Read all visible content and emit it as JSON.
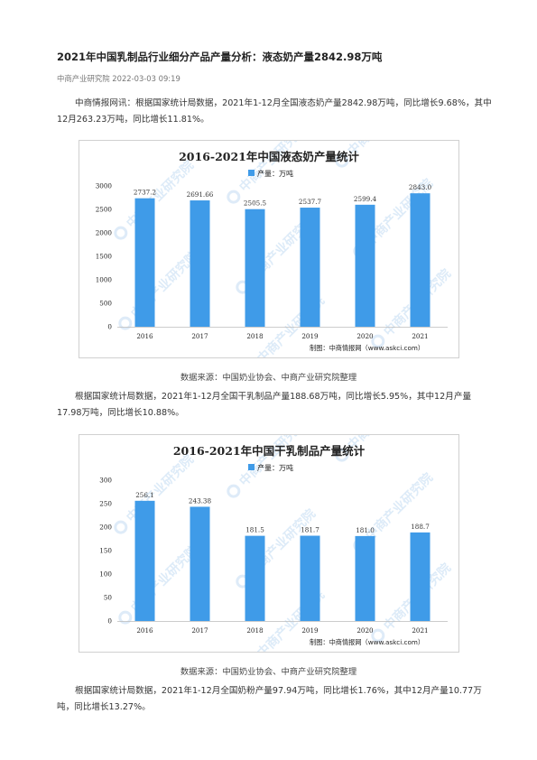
{
  "article": {
    "title": "2021年中国乳制品行业细分产品产量分析：液态奶产量2842.98万吨",
    "source_name": "中商产业研究院",
    "date": "2022-03-03 09:19",
    "p1": "中商情报网讯：根据国家统计局数据，2021年1-12月全国液态奶产量2842.98万吨，同比增长9.68%，其中12月263.23万吨，同比增长11.81%。",
    "caption1": "数据来源：中国奶业协会、中商产业研究院整理",
    "p2": "根据国家统计局数据，2021年1-12月全国干乳制品产量188.68万吨，同比增长5.95%，其中12月产量17.98万吨，同比增长10.88%。",
    "caption2": "数据来源：中国奶业协会、中商产业研究院整理",
    "p3": "根据国家统计局数据，2021年1-12月全国奶粉产量97.94万吨，同比增长1.76%，其中12月产量10.77万吨，同比增长13.27%。"
  },
  "chart_data": [
    {
      "type": "bar",
      "title": "2016-2021年中国液态奶产量统计",
      "categories": [
        "2016",
        "2017",
        "2018",
        "2019",
        "2020",
        "2021"
      ],
      "series": [
        {
          "name": "产量：万吨",
          "values": [
            2737.2,
            2691.66,
            2505.5,
            2537.7,
            2599.4,
            2843.0
          ]
        }
      ],
      "value_labels": [
        "2737.2",
        "2691.66",
        "2505.5",
        "2537.7",
        "2599.4",
        "2843.0"
      ],
      "yticks": [
        "0",
        "500",
        "1000",
        "1500",
        "2000",
        "2500",
        "3000"
      ],
      "ylim": [
        0,
        3000
      ],
      "legend": "top-center",
      "grid": false,
      "credit": "制图：中商情报网（www.askci.com）",
      "bar_color": "#3f9be8"
    },
    {
      "type": "bar",
      "title": "2016-2021年中国干乳制品产量统计",
      "categories": [
        "2016",
        "2017",
        "2018",
        "2019",
        "2020",
        "2021"
      ],
      "series": [
        {
          "name": "产量：万吨",
          "values": [
            256.1,
            243.38,
            181.5,
            181.7,
            181.0,
            188.7
          ]
        }
      ],
      "value_labels": [
        "256.1",
        "243.38",
        "181.5",
        "181.7",
        "181.0",
        "188.7"
      ],
      "yticks": [
        "0",
        "50",
        "100",
        "150",
        "200",
        "250",
        "300"
      ],
      "ylim": [
        0,
        300
      ],
      "legend": "top-center",
      "grid": false,
      "credit": "制图：中商情报网（www.askci.com）",
      "bar_color": "#3f9be8"
    }
  ],
  "watermark": "中商产业研究院"
}
